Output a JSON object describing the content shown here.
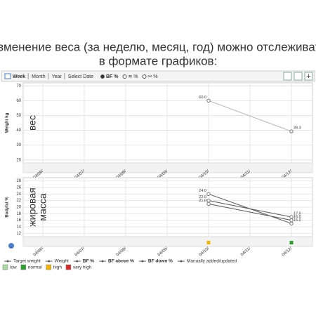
{
  "header": {
    "title_lines": [
      "Изменение веса (за неделю, месяц, год) можно отслеживать",
      "в формате графиков:"
    ]
  },
  "toolbar": {
    "periods": [
      "Week",
      "Month",
      "Year",
      "Select Date"
    ],
    "modes": [
      "BF %",
      "≋ %",
      "⚯ %"
    ]
  },
  "chart_data": [
    {
      "type": "line",
      "annotation": "вес",
      "y_label": "Weight kg",
      "categories": [
        "04/06/",
        "04/07/",
        "04/08/",
        "04/09/",
        "04/10/",
        "04/11/",
        "04/12/"
      ],
      "ylim": [
        18,
        72
      ],
      "yticks": [
        20,
        30,
        40,
        50,
        60,
        70
      ],
      "grid": true,
      "series": [
        {
          "name": "Weight",
          "color": "#b5b5b5",
          "x": [
            "04/10/",
            "04/12/"
          ],
          "values": [
            60.0,
            39.3
          ],
          "value_labels": [
            "60.0",
            "39.3"
          ]
        }
      ]
    },
    {
      "type": "line",
      "annotation": [
        "жировая",
        "масса"
      ],
      "y_label": "Bodyfat %",
      "categories": [
        "04/06/",
        "04/07/",
        "04/08/",
        "04/09/",
        "04/10/",
        "04/11/",
        "04/12/"
      ],
      "ylim": [
        11,
        29
      ],
      "yticks": [
        12,
        14,
        16,
        18,
        20,
        22,
        24,
        26,
        28
      ],
      "grid": true,
      "status_colors": [
        null,
        null,
        null,
        null,
        "#f0b400",
        null,
        "#2ca02c"
      ],
      "series": [
        {
          "name": "BF %",
          "color": "#555555",
          "x": [
            "04/10/",
            "04/12/"
          ],
          "values": [
            24.0,
            15.0
          ],
          "value_labels": [
            "24.0",
            "15.0"
          ]
        },
        {
          "name": "BF above %",
          "color": "#555555",
          "x": [
            "04/10/",
            "04/12/"
          ],
          "values": [
            22.0,
            17.0
          ],
          "value_labels": [
            "22.0",
            "17.0"
          ]
        },
        {
          "name": "BF down %",
          "color": "#555555",
          "x": [
            "04/10/",
            "04/12/"
          ],
          "values": [
            21.0,
            16.0
          ],
          "value_labels": [
            "21.0",
            "16.0"
          ]
        }
      ]
    }
  ],
  "legend": {
    "lines": [
      "Target weight",
      "Weight",
      "BF %",
      "BF above %",
      "BF down %",
      "Manually added/updated"
    ],
    "status": [
      {
        "label": "low",
        "color": "#a8d8a0"
      },
      {
        "label": "normal",
        "color": "#2ca02c"
      },
      {
        "label": "high",
        "color": "#f0b400"
      },
      {
        "label": "very high",
        "color": "#d62728"
      }
    ]
  }
}
